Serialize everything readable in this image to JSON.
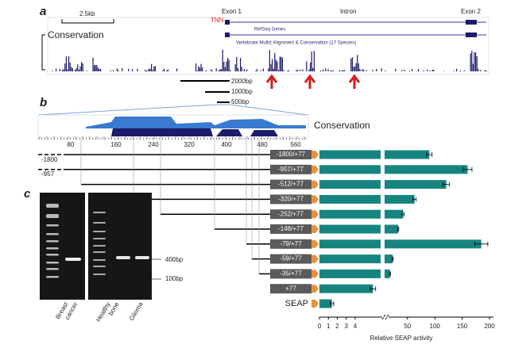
{
  "panel_labels": [
    "a",
    "b",
    "c"
  ],
  "track": {
    "scale": "2.5kb",
    "gene": "TNN",
    "exon1": "Exon 1",
    "intron": "Intron",
    "exon2": "Exon 2",
    "conservation": "Conservation",
    "refseq": "RefSeq Genes",
    "multiz": "Vertebrate Multiz Alignment & Conservation (17 Species)"
  },
  "lengths": [
    "2000bp",
    "1000bp",
    "500bp"
  ],
  "zoom": {
    "conservation": "Conservation",
    "ruler": [
      80,
      160,
      240,
      320,
      400,
      480,
      560
    ],
    "starts": [
      "-1800",
      "-957"
    ]
  },
  "gel": {
    "markers": [
      "400bp",
      "100bp"
    ],
    "lanes": [
      [
        "Breast",
        "cancer"
      ],
      [
        "Healthy",
        "bone"
      ],
      [
        "Glioma"
      ]
    ]
  },
  "chart_data": {
    "type": "bar",
    "orientation": "horizontal",
    "categories": [
      "-1800/+77",
      "-957/+77",
      "-512/+77",
      "-320/+77",
      "-252/+77",
      "-148/+77",
      "-79/+77",
      "-59/+77",
      "-35/+77",
      "+77",
      "SEAP"
    ],
    "values": [
      90,
      160,
      121,
      63,
      42,
      33,
      185,
      23,
      18,
      6,
      1.4
    ],
    "errors": [
      5,
      8,
      6,
      3,
      2,
      1,
      12,
      1,
      1,
      0.3,
      0.2
    ],
    "color": "#17857f",
    "xlabel": "Relative SEAP activity",
    "xlim": [
      0,
      200
    ],
    "xbreak": [
      6.5,
      14
    ],
    "xticks": [
      0,
      1,
      2,
      3,
      4,
      50,
      100,
      150,
      200
    ]
  }
}
